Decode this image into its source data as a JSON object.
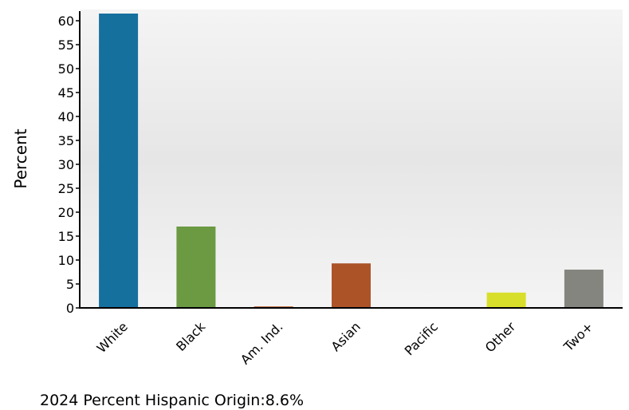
{
  "chart_data": {
    "type": "bar",
    "categories": [
      "White",
      "Black",
      "Am. Ind.",
      "Asian",
      "Pacific",
      "Other",
      "Two+"
    ],
    "values": [
      61.5,
      17.0,
      0.3,
      9.3,
      0.1,
      3.2,
      8.0
    ],
    "colors": [
      "#16709e",
      "#6b9a42",
      "#b5541f",
      "#ad5328",
      "#4a7fb0",
      "#d8df2a",
      "#858580"
    ],
    "ylabel": "Percent",
    "xlabel": "",
    "ylim": [
      0,
      62
    ],
    "yticks": [
      0,
      5,
      10,
      15,
      20,
      25,
      30,
      35,
      40,
      45,
      50,
      55,
      60
    ],
    "grid": false
  },
  "footnote": "2024 Percent Hispanic Origin:8.6%"
}
